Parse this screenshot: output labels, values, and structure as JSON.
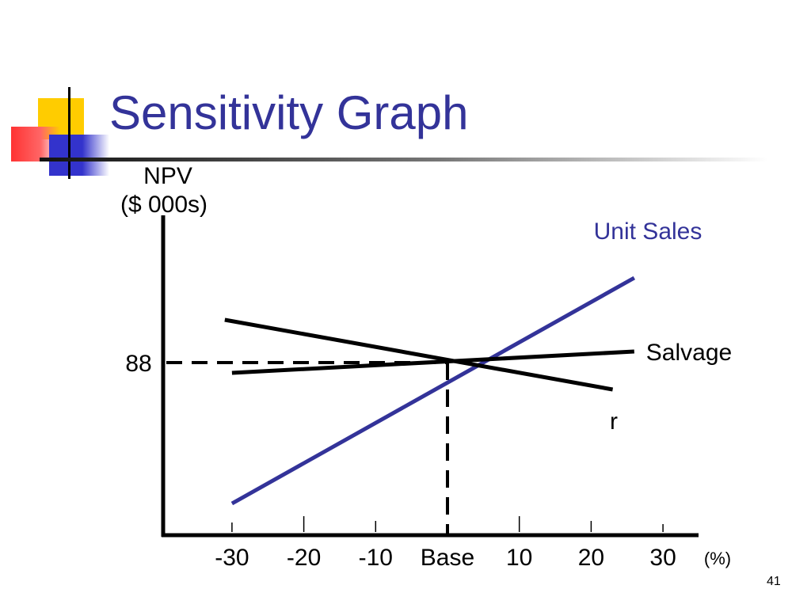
{
  "slide": {
    "title": "Sensitivity Graph",
    "page_number": "41"
  },
  "colors": {
    "title": "#333399",
    "unit_sales_line": "#333399",
    "other_lines": "#000000",
    "deco_yellow": "#ffcc00",
    "deco_red": "#ff3333",
    "deco_blue": "#3333cc"
  },
  "chart_data": {
    "type": "line",
    "ylabel_line1": "NPV",
    "ylabel_line2": "($ 000s)",
    "x_unit_label": "(%)",
    "x_ticks": [
      {
        "value": -30,
        "label": "-30"
      },
      {
        "value": -20,
        "label": "-20"
      },
      {
        "value": -10,
        "label": "-10"
      },
      {
        "value": 0,
        "label": "Base"
      },
      {
        "value": 10,
        "label": "10"
      },
      {
        "value": 20,
        "label": "20"
      },
      {
        "value": 30,
        "label": "30"
      }
    ],
    "y_tick": {
      "value": 88,
      "label": "88"
    },
    "base_point": {
      "x": 0,
      "y": 88
    },
    "series": [
      {
        "name": "Unit Sales",
        "color": "#333399",
        "x": [
          -30,
          26
        ],
        "y": [
          -90,
          195
        ]
      },
      {
        "name": "Salvage",
        "color": "#000000",
        "x": [
          -30,
          26
        ],
        "y": [
          75,
          102
        ]
      },
      {
        "name": "r",
        "color": "#000000",
        "x": [
          -31,
          23
        ],
        "y": [
          142,
          54
        ]
      }
    ]
  }
}
